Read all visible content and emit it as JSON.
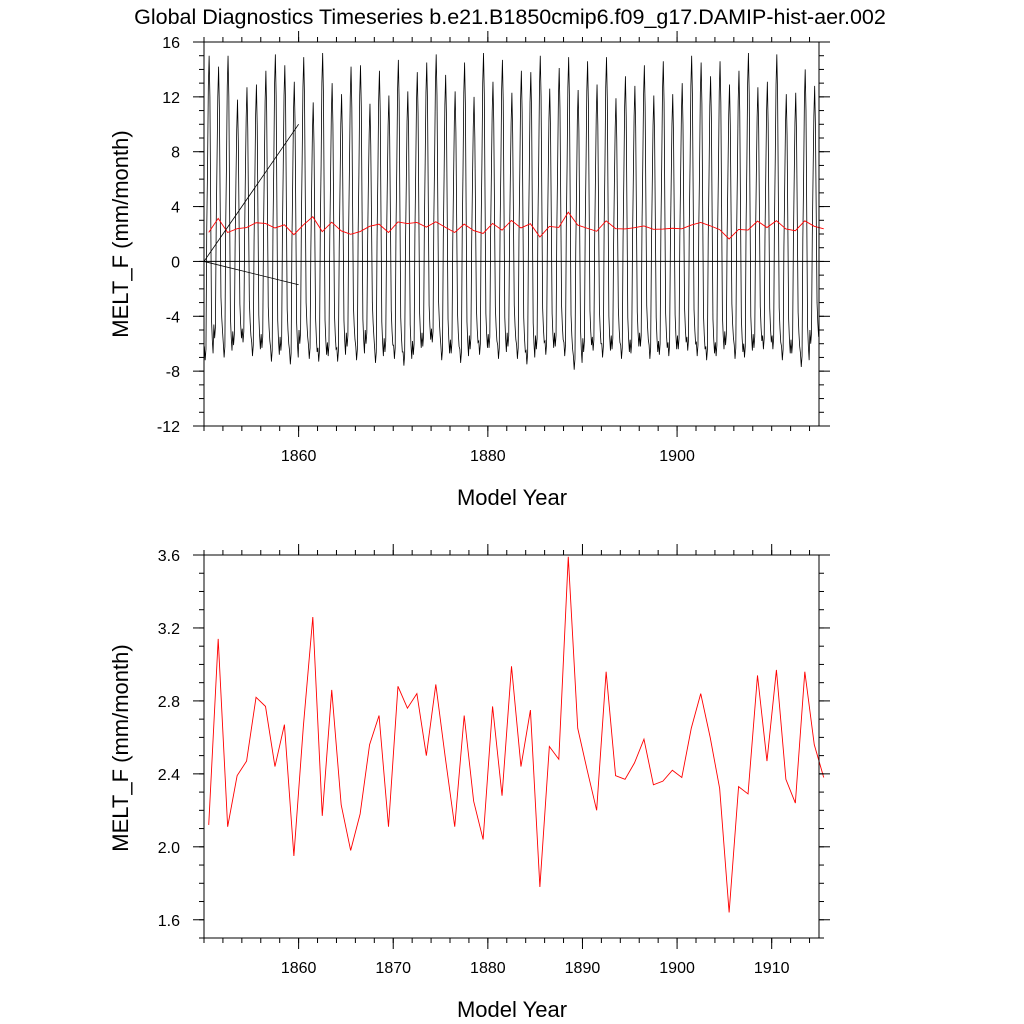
{
  "figure": {
    "title": "Global Diagnostics Timeseries b.e21.B1850cmip6.f09_g17.DAMIP-hist-aer.002"
  },
  "chart_data": [
    {
      "type": "line",
      "xlabel": "Model Year",
      "ylabel": "MELT_F (mm/month)",
      "xlim": [
        1850,
        1915
      ],
      "ylim": [
        -12,
        16
      ],
      "x_ticks": [
        1860,
        1880,
        1900
      ],
      "y_ticks": [
        -12,
        -8,
        -4,
        0,
        4,
        8,
        12,
        16
      ],
      "grid": false,
      "legend": "none",
      "colors": {
        "monthly": "#000000",
        "annual": "#ff0000"
      },
      "monthly_series": {
        "start_year": 1850,
        "seasonal_max": [
          15.0,
          14.2,
          15.0,
          11.8,
          12.7,
          12.9,
          13.9,
          15.1,
          14.3,
          13.1,
          14.9,
          11.6,
          15.2,
          13.0,
          12.2,
          14.2,
          14.3,
          11.5,
          13.9,
          12.1,
          14.7,
          12.4,
          13.8,
          14.5,
          15.1,
          13.6,
          12.4,
          14.5,
          12.0,
          15.2,
          13.1,
          14.7,
          12.3,
          13.9,
          13.8,
          15.0,
          12.6,
          14.1,
          14.9,
          12.5,
          14.6,
          12.9,
          14.9,
          11.9,
          13.5,
          12.8,
          14.3,
          12.1,
          14.6,
          12.2,
          13.0,
          15.0,
          14.5,
          13.5,
          14.6,
          12.9,
          13.9,
          15.2,
          12.7,
          13.1,
          15.1,
          12.2,
          12.3,
          14.0,
          12.8,
          11.5
        ],
        "seasonal_min": [
          -7.2,
          -5.6,
          -7.0,
          -6.1,
          -5.9,
          -6.9,
          -6.3,
          -7.3,
          -6.5,
          -7.5,
          -6.0,
          -7.1,
          -7.3,
          -6.9,
          -7.3,
          -6.2,
          -7.2,
          -6.0,
          -7.4,
          -6.6,
          -7.1,
          -7.6,
          -6.8,
          -6.2,
          -5.9,
          -7.2,
          -6.7,
          -7.4,
          -6.4,
          -6.8,
          -6.3,
          -7.1,
          -6.2,
          -7.1,
          -7.5,
          -6.4,
          -6.8,
          -6.2,
          -6.9,
          -7.9,
          -6.6,
          -6.5,
          -7.0,
          -6.4,
          -7.1,
          -6.7,
          -6.2,
          -7.1,
          -6.8,
          -6.9,
          -6.4,
          -6.5,
          -6.9,
          -7.2,
          -6.9,
          -6.1,
          -7.1,
          -7.0,
          -6.3,
          -6.4,
          -6.4,
          -7.2,
          -6.7,
          -7.7,
          -6.0,
          -6.6
        ]
      },
      "annual_values": [
        2.12,
        3.14,
        2.11,
        2.39,
        2.47,
        2.82,
        2.77,
        2.44,
        2.67,
        1.95,
        2.66,
        3.26,
        2.17,
        2.86,
        2.23,
        1.98,
        2.18,
        2.56,
        2.72,
        2.11,
        2.88,
        2.76,
        2.84,
        2.5,
        2.89,
        2.49,
        2.11,
        2.72,
        2.25,
        2.04,
        2.77,
        2.28,
        2.99,
        2.44,
        2.75,
        1.78,
        2.55,
        2.48,
        3.59,
        2.65,
        2.42,
        2.2,
        2.96,
        2.39,
        2.37,
        2.46,
        2.59,
        2.34,
        2.36,
        2.42,
        2.38,
        2.65,
        2.84,
        2.6,
        2.32,
        1.64,
        2.33,
        2.29,
        2.94,
        2.47,
        2.97,
        2.37,
        2.24,
        2.96,
        2.56,
        2.38
      ]
    },
    {
      "type": "line",
      "xlabel": "Model Year",
      "ylabel": "MELT_F (mm/month)",
      "xlim": [
        1850,
        1915
      ],
      "ylim": [
        1.5,
        3.6
      ],
      "x_ticks": [
        1860,
        1870,
        1880,
        1890,
        1900,
        1910
      ],
      "y_ticks": [
        1.6,
        2.0,
        2.4,
        2.8,
        3.2,
        3.6
      ],
      "y_tick_labels": [
        "1.6",
        "2.0",
        "2.4",
        "2.8",
        "3.2",
        "3.6"
      ],
      "grid": false,
      "legend": "none",
      "series": [
        {
          "color": "#ff0000",
          "x_start": 1850.5,
          "values": [
            2.12,
            3.14,
            2.11,
            2.39,
            2.47,
            2.82,
            2.77,
            2.44,
            2.67,
            1.95,
            2.66,
            3.26,
            2.17,
            2.86,
            2.23,
            1.98,
            2.18,
            2.56,
            2.72,
            2.11,
            2.88,
            2.76,
            2.84,
            2.5,
            2.89,
            2.49,
            2.11,
            2.72,
            2.25,
            2.04,
            2.77,
            2.28,
            2.99,
            2.44,
            2.75,
            1.78,
            2.55,
            2.48,
            3.59,
            2.65,
            2.42,
            2.2,
            2.96,
            2.39,
            2.37,
            2.46,
            2.59,
            2.34,
            2.36,
            2.42,
            2.38,
            2.65,
            2.84,
            2.6,
            2.32,
            1.64,
            2.33,
            2.29,
            2.94,
            2.47,
            2.97,
            2.37,
            2.24,
            2.96,
            2.56,
            2.38
          ]
        }
      ]
    }
  ]
}
